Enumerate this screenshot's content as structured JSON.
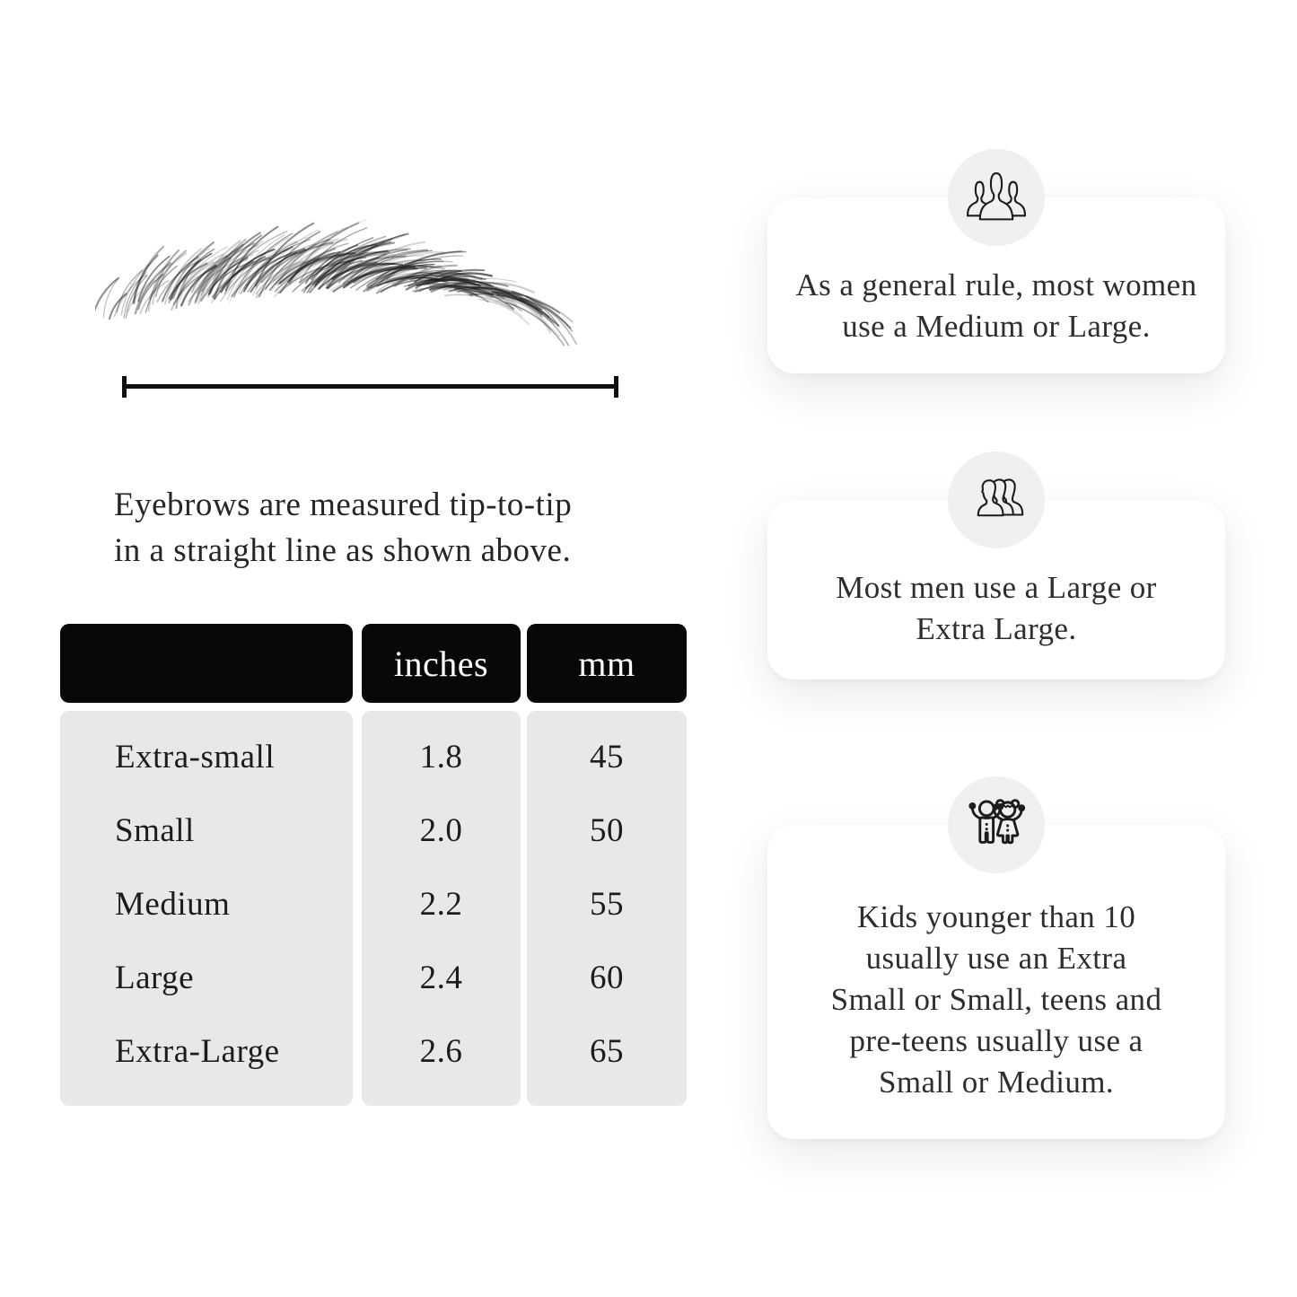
{
  "measurement_diagram": {
    "caption_lines": [
      "Eyebrows are measured tip-to-tip",
      "in a straight line as shown above."
    ]
  },
  "size_table": {
    "headers": {
      "label": "",
      "inches": "inches",
      "mm": "mm"
    },
    "rows": [
      {
        "label": "Extra-small",
        "inches": "1.8",
        "mm": "45"
      },
      {
        "label": "Small",
        "inches": "2.0",
        "mm": "50"
      },
      {
        "label": "Medium",
        "inches": "2.2",
        "mm": "55"
      },
      {
        "label": "Large",
        "inches": "2.4",
        "mm": "60"
      },
      {
        "label": "Extra-Large",
        "inches": "2.6",
        "mm": "65"
      }
    ]
  },
  "info_cards": [
    {
      "icon": "women-group-icon",
      "lines": [
        "As a general rule, most women",
        "use a Medium or Large."
      ]
    },
    {
      "icon": "men-group-icon",
      "lines": [
        "Most men use a Large or",
        "Extra Large."
      ]
    },
    {
      "icon": "kids-icon",
      "lines": [
        "Kids younger than 10",
        "usually use an Extra",
        "Small or Small, teens and",
        "pre-teens usually use a",
        "Small or Medium."
      ]
    }
  ],
  "colors": {
    "page_bg": "#ffffff",
    "table_header_bg": "#080808",
    "table_header_text": "#ffffff",
    "table_body_bg": "#e9e8e8",
    "badge_bg": "#f1f0ef",
    "card_bg": "#ffffff",
    "text": "#1f1f1f",
    "measure_line": "#101010"
  }
}
